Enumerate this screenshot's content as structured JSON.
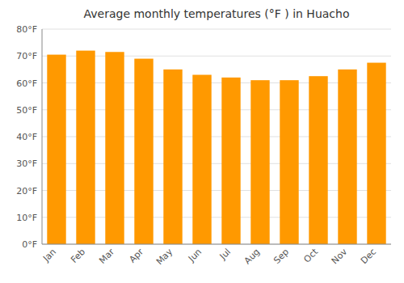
{
  "chart_data": {
    "type": "bar",
    "title": "Average monthly temperatures (°F ) in Huacho",
    "categories": [
      "Jan",
      "Feb",
      "Mar",
      "Apr",
      "May",
      "Jun",
      "Jul",
      "Aug",
      "Sep",
      "Oct",
      "Nov",
      "Dec"
    ],
    "values": [
      70.5,
      72,
      71.5,
      69,
      65,
      63,
      62,
      61,
      61,
      62.5,
      65,
      67.5
    ],
    "color": "#FF9900",
    "ylim": [
      0,
      80
    ],
    "yticks": [
      {
        "value": 0,
        "label": "0°F"
      },
      {
        "value": 10,
        "label": "10°F"
      },
      {
        "value": 20,
        "label": "20°F"
      },
      {
        "value": 30,
        "label": "30°F"
      },
      {
        "value": 40,
        "label": "40°F"
      },
      {
        "value": 50,
        "label": "50°F"
      },
      {
        "value": 60,
        "label": "60°F"
      },
      {
        "value": 70,
        "label": "70°F"
      },
      {
        "value": 80,
        "label": "80°F"
      }
    ],
    "grid": true
  }
}
